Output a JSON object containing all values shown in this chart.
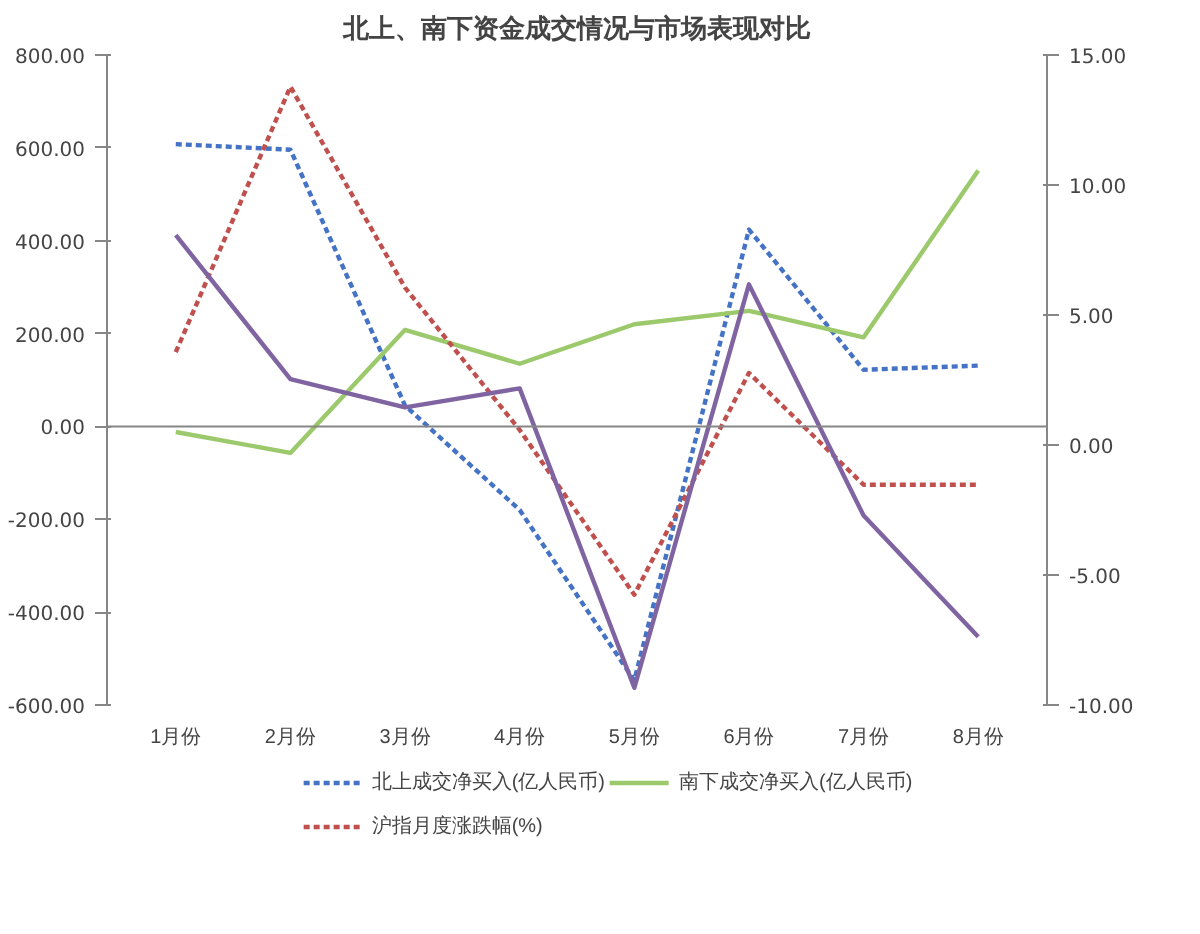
{
  "chart_data": {
    "type": "line",
    "title": "北上、南下资金成交情况与市场表现对比",
    "categories": [
      "1月份",
      "2月份",
      "3月份",
      "4月份",
      "5月份",
      "6月份",
      "7月份",
      "8月份"
    ],
    "series": [
      {
        "name": "北上成交净买入(亿人民币)",
        "color": "#4472c4",
        "line_style": "dotted",
        "values": [
          608,
          596,
          45,
          -180,
          -547,
          424,
          122,
          131
        ]
      },
      {
        "name": "南下成交净买入(亿人民币)",
        "color": "#9bc96b",
        "line_style": "solid",
        "values": [
          -12,
          -57,
          208,
          135,
          220,
          249,
          192,
          551
        ]
      },
      {
        "name": "沪指月度涨跌幅(%)",
        "color": "#c0504d",
        "line_style": "dotted",
        "axis": "y2",
        "values": [
          3.57,
          13.78,
          6.05,
          0.58,
          -5.76,
          2.77,
          -1.53,
          -1.53
        ]
      },
      {
        "color": "#8064a2",
        "line_style": "solid",
        "values": [
          412,
          102,
          41,
          82,
          -563,
          306,
          -192,
          -453
        ]
      }
    ],
    "ylim": [
      -600,
      800
    ],
    "yticks": [
      {
        "value": -600,
        "label": "-600.00"
      },
      {
        "value": -400,
        "label": "-400.00"
      },
      {
        "value": -200,
        "label": "-200.00"
      },
      {
        "value": 0,
        "label": "0.00"
      },
      {
        "value": 200,
        "label": "200.00"
      },
      {
        "value": 400,
        "label": "400.00"
      },
      {
        "value": 600,
        "label": "600.00"
      },
      {
        "value": 800,
        "label": "800.00"
      }
    ],
    "y2lim": [
      -10,
      15
    ],
    "y2ticks": [
      {
        "value": -10,
        "label": "-10.00"
      },
      {
        "value": -5,
        "label": "-5.00"
      },
      {
        "value": 0,
        "label": "0.00"
      },
      {
        "value": 5,
        "label": "5.00"
      },
      {
        "value": 10,
        "label": "10.00"
      },
      {
        "value": 15,
        "label": "15.00"
      }
    ],
    "ref_lines": [
      {
        "axis": "y",
        "value": 0,
        "color": "#868686"
      }
    ],
    "grid": false,
    "legend": "bottom"
  }
}
